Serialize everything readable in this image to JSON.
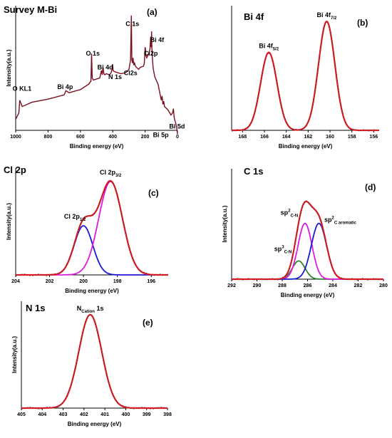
{
  "chart_data": [
    {
      "panel_label": "(a)",
      "type": "line",
      "title": "Survey M-Bi",
      "xlabel": "Binding energy (eV)",
      "ylabel": "Intensity(a.u.)",
      "xlim": [
        1000,
        0
      ],
      "xticks": [
        "1000",
        "800",
        "600",
        "400",
        "200",
        "0"
      ],
      "annotations": [
        {
          "text": "O KL1",
          "x": 975,
          "y": 0.18
        },
        {
          "text": "Bi 4p",
          "x": 690,
          "y": 0.2
        },
        {
          "text": "O 1s",
          "x": 531,
          "y": 0.5
        },
        {
          "text": "Bi 4d",
          "x": 460,
          "y": 0.39
        },
        {
          "text": "N 1s",
          "x": 401,
          "y": 0.28
        },
        {
          "text": "C 1s",
          "x": 285,
          "y": 0.78
        },
        {
          "text": "Cl2p",
          "x": 199,
          "y": 0.5
        },
        {
          "text": "Cl2s",
          "x": 270,
          "y": 0.33
        },
        {
          "text": "Bi 4f",
          "x": 160,
          "y": 0.63
        },
        {
          "text": "Bi 5p",
          "x": 90,
          "y": -0.2
        },
        {
          "text": "Bi 5d",
          "x": 25,
          "y": -0.12
        }
      ],
      "series": [
        {
          "color": "#7b0f1e",
          "x": [
            1000,
            980,
            975,
            960,
            900,
            800,
            750,
            700,
            690,
            670,
            600,
            550,
            535,
            531,
            527,
            520,
            480,
            470,
            465,
            460,
            455,
            450,
            440,
            420,
            410,
            405,
            401,
            398,
            390,
            350,
            320,
            300,
            290,
            285,
            282,
            278,
            275,
            270,
            265,
            260,
            240,
            230,
            210,
            205,
            200,
            198,
            195,
            190,
            180,
            170,
            165,
            162,
            160,
            158,
            155,
            150,
            140,
            120,
            100,
            95,
            90,
            85,
            80,
            60,
            40,
            30,
            25,
            20,
            10,
            5,
            0
          ],
          "y": [
            -0.06,
            0.0,
            0.12,
            0.06,
            0.1,
            0.13,
            0.15,
            0.17,
            0.21,
            0.19,
            0.22,
            0.27,
            0.3,
            0.56,
            0.33,
            0.31,
            0.33,
            0.4,
            0.36,
            0.43,
            0.37,
            0.36,
            0.37,
            0.36,
            0.38,
            0.41,
            0.46,
            0.4,
            0.39,
            0.37,
            0.38,
            0.41,
            0.5,
            0.92,
            0.5,
            0.47,
            0.52,
            0.45,
            0.47,
            0.44,
            0.41,
            0.43,
            0.44,
            0.47,
            0.62,
            0.6,
            0.54,
            0.52,
            0.55,
            0.6,
            0.72,
            0.62,
            0.77,
            0.62,
            0.52,
            0.42,
            0.34,
            0.27,
            0.12,
            0.16,
            0.08,
            0.11,
            0.06,
            0.03,
            -0.02,
            0.0,
            0.04,
            -0.05,
            -0.1,
            -0.14,
            -0.2
          ]
        }
      ]
    },
    {
      "panel_label": "(b)",
      "type": "line",
      "title": "Bi 4f",
      "xlabel": "Binding energy (eV)",
      "ylabel": "",
      "xlim": [
        169,
        155.5
      ],
      "xticks": [
        "168",
        "166",
        "164",
        "162",
        "160",
        "158",
        "156"
      ],
      "peaks": [
        {
          "label": "Bi 4f",
          "sub": "5/2",
          "center": 165.6,
          "height": 0.68,
          "width": 0.75
        },
        {
          "label": "Bi 4f",
          "sub": "7/2",
          "center": 160.3,
          "height": 0.95,
          "width": 0.75
        }
      ],
      "series": [
        {
          "color": "#e21b23",
          "component": "fit"
        }
      ]
    },
    {
      "panel_label": "(c)",
      "type": "line",
      "title": "Cl 2p",
      "xlabel": "Binding energy (eV)",
      "ylabel": "Intensity(a.u.)",
      "xlim": [
        204,
        195
      ],
      "xticks": [
        "204",
        "202",
        "200",
        "198",
        "196"
      ],
      "peaks": [
        {
          "label": "Cl 2p",
          "sub": "1/2",
          "center": 200.0,
          "height": 0.5,
          "width": 0.55
        },
        {
          "label": "Cl 2p",
          "sub": "3/2",
          "center": 198.4,
          "height": 0.95,
          "width": 0.7
        }
      ],
      "series": [
        {
          "color": "#e21b23",
          "component": "envelope"
        },
        {
          "color": "#1a1ad6",
          "component": "Cl 2p1/2"
        },
        {
          "color": "#e11ae0",
          "component": "Cl 2p3/2"
        }
      ]
    },
    {
      "panel_label": "(d)",
      "type": "line",
      "title": "C 1s",
      "xlabel": "Binding energy (eV)",
      "ylabel": "Intensity(a.u.)",
      "xlim": [
        292,
        280
      ],
      "xticks": [
        "292",
        "290",
        "288",
        "286",
        "284",
        "282",
        "280"
      ],
      "peaks": [
        {
          "label": "sp",
          "sup": "3",
          "sub": "C-N",
          "center": 286.7,
          "height": 0.18,
          "width": 0.5
        },
        {
          "label": "sp",
          "sup": "2",
          "sub": "C-N",
          "center": 286.2,
          "height": 0.55,
          "width": 0.55
        },
        {
          "label": "sp",
          "sup": "2",
          "sub": "C aromatic",
          "center": 285.1,
          "height": 0.55,
          "width": 0.6
        }
      ],
      "series": [
        {
          "color": "#e21b23",
          "component": "envelope"
        },
        {
          "color": "#2a8a2a",
          "component": "sp3 C-N"
        },
        {
          "color": "#e11ae0",
          "component": "sp2 C-N"
        },
        {
          "color": "#1a1ad6",
          "component": "sp2 C aromatic"
        }
      ]
    },
    {
      "panel_label": "(e)",
      "type": "line",
      "title": "N 1s",
      "xlabel": "Binding energy (eV)",
      "ylabel": "Intensity(a.u.)",
      "xlim": [
        405,
        398
      ],
      "xticks": [
        "405",
        "404",
        "403",
        "402",
        "401",
        "400",
        "399",
        "398"
      ],
      "peaks": [
        {
          "label": "N",
          "sub": "Cation",
          "suffix": " 1s",
          "center": 401.7,
          "height": 0.95,
          "width": 0.55
        }
      ],
      "series": [
        {
          "color": "#e21b23",
          "component": "fit"
        }
      ]
    }
  ]
}
